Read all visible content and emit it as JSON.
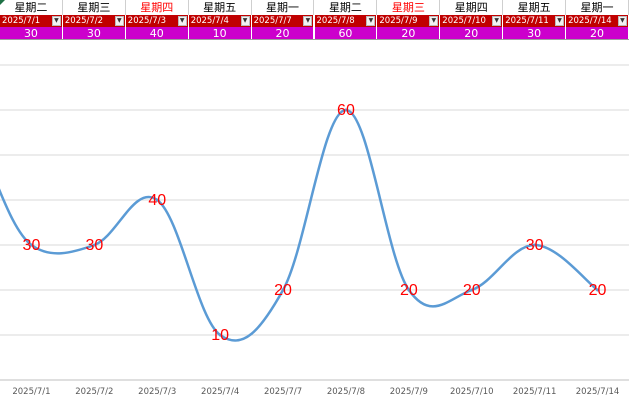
{
  "header": {
    "weekdays": [
      "星期二",
      "星期三",
      "星期四",
      "星期五",
      "星期一",
      "星期二",
      "星期三",
      "星期四",
      "星期五",
      "星期一"
    ],
    "weekday_red": [
      false,
      false,
      true,
      false,
      false,
      false,
      true,
      false,
      false,
      false
    ],
    "dates": [
      "2025/7/1",
      "2025/7/2",
      "2025/7/3",
      "2025/7/4",
      "2025/7/7",
      "2025/7/8",
      "2025/7/9",
      "2025/7/10",
      "2025/7/11",
      "2025/7/14"
    ],
    "values": [
      "30",
      "30",
      "40",
      "10",
      "20",
      "60",
      "20",
      "20",
      "30",
      "20"
    ],
    "dropdown_icon": "dropdown-arrow-icon",
    "colors": {
      "date_bg": "#c00000",
      "value_bg": "#cc00cc",
      "weekday_red": "#ff0000"
    }
  },
  "chart_data": {
    "type": "line",
    "categories": [
      "2025/7/1",
      "2025/7/2",
      "2025/7/3",
      "2025/7/4",
      "2025/7/7",
      "2025/7/8",
      "2025/7/9",
      "2025/7/10",
      "2025/7/11",
      "2025/7/14"
    ],
    "values": [
      30,
      30,
      40,
      10,
      20,
      60,
      20,
      20,
      30,
      20
    ],
    "ylim": [
      0,
      70
    ],
    "grid": true,
    "smooth": true,
    "line_color": "#5b9bd5",
    "label_color": "#ff0000",
    "title": "",
    "xlabel": "",
    "ylabel": ""
  }
}
